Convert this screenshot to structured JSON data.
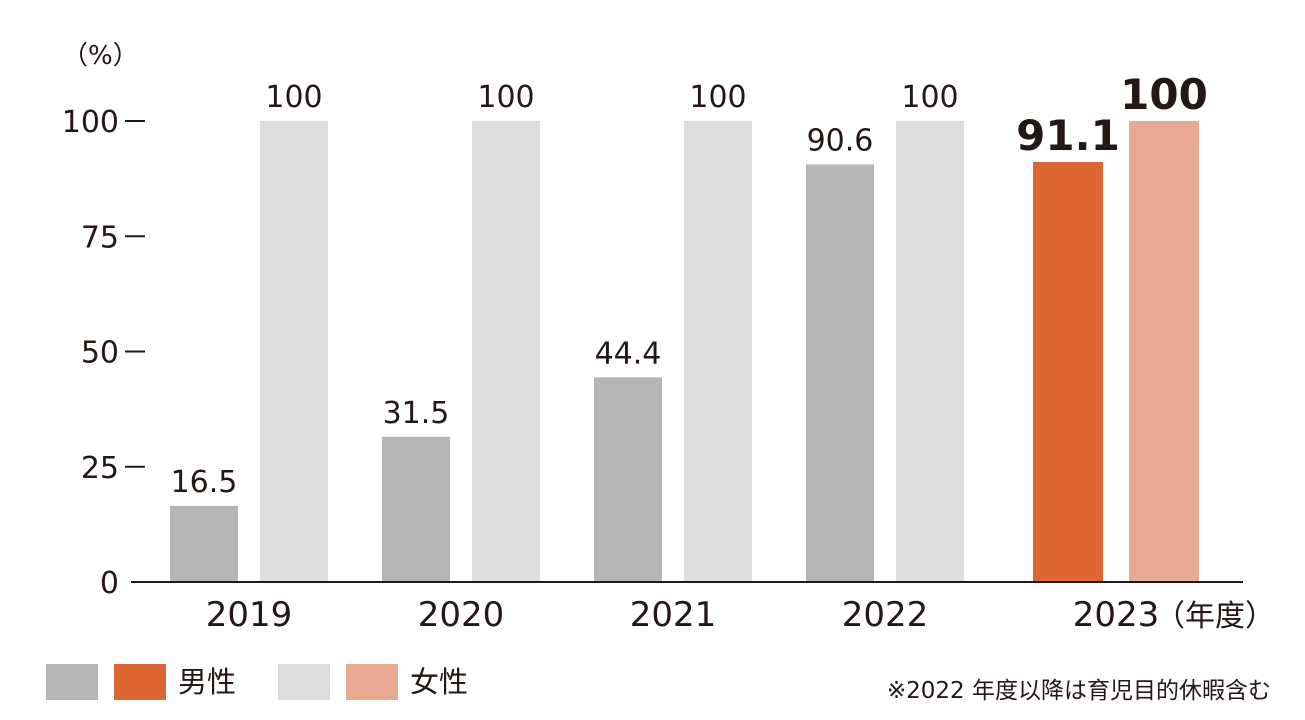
{
  "chart_data": {
    "type": "bar",
    "categories": [
      "2019",
      "2020",
      "2021",
      "2022",
      "2023"
    ],
    "series": [
      {
        "name": "男性",
        "values": [
          16.5,
          31.5,
          44.4,
          90.6,
          91.1
        ]
      },
      {
        "name": "女性",
        "values": [
          100,
          100,
          100,
          100,
          100
        ]
      }
    ],
    "value_labels": {
      "男性": [
        "16.5",
        "31.5",
        "44.4",
        "90.6",
        "91.1"
      ],
      "女性": [
        "100",
        "100",
        "100",
        "100",
        "100"
      ]
    },
    "ylabel": "（%）",
    "xlabel": "（年度）",
    "ylim": [
      0,
      100
    ],
    "yticks": [
      0,
      25,
      50,
      75,
      100
    ],
    "ytick_labels": [
      "0",
      "25",
      "50",
      "75",
      "100"
    ],
    "grid": false,
    "legend_position": "bottom-left",
    "highlight_category": "2023",
    "colors": {
      "male": "#b5b6b5",
      "female": "#dcdddd",
      "male_highlight": "#dc6733",
      "female_highlight": "#e9aa94",
      "axis": "#231815"
    }
  },
  "legend": {
    "items": [
      {
        "label": "男性",
        "colors": [
          "#b5b6b5",
          "#dc6733"
        ]
      },
      {
        "label": "女性",
        "colors": [
          "#dcdddd",
          "#e9aa94"
        ]
      }
    ]
  },
  "note": "※2022 年度以降は育児目的休暇含む"
}
